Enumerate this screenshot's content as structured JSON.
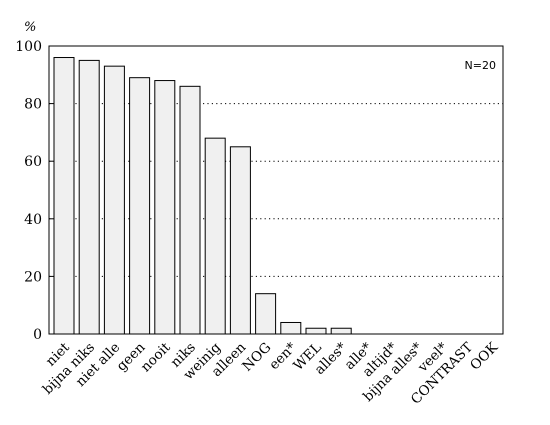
{
  "chart_data": {
    "type": "bar",
    "title": "",
    "xlabel": "",
    "ylabel": "%",
    "ylim": [
      0,
      100
    ],
    "yticks": [
      0,
      20,
      40,
      60,
      80,
      100
    ],
    "grid": "horizontal dotted lines at 20, 40, 60, 80",
    "annotation": "N=20",
    "annotation_placement": "top-right",
    "legend": "none",
    "colors": {
      "bar_fill": "#f0f0f0",
      "bar_stroke": "#000000",
      "grid": "#000000"
    },
    "categories": [
      "niet",
      "bijna niks",
      "niet alle",
      "geen",
      "nooit",
      "niks",
      "weinig",
      "alleen",
      "NOG",
      "een*",
      "WEL",
      "alles*",
      "alle*",
      "altijd*",
      "bijna alles*",
      "veel*",
      "CONTRAST",
      "OOK"
    ],
    "values": [
      96,
      95,
      93,
      89,
      88,
      86,
      68,
      65,
      14,
      4,
      2,
      2,
      0,
      0,
      0,
      0,
      0,
      0
    ]
  }
}
